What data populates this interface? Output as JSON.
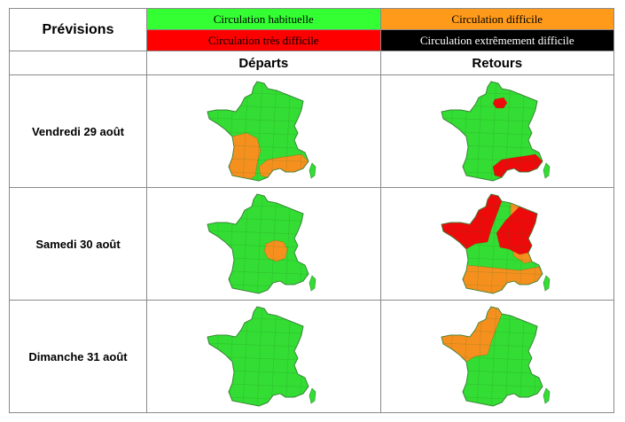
{
  "title": "Prévisions",
  "legend": {
    "habituelle": "Circulation habituelle",
    "difficile": "Circulation difficile",
    "tres_difficile": "Circulation très difficile",
    "extreme": "Circulation extrêmement difficile"
  },
  "colors": {
    "habituelle": "#33dd33",
    "difficile": "#f5901e",
    "tres_difficile": "#ee0a0a",
    "extreme": "#000000"
  },
  "columns": {
    "departs": "Départs",
    "retours": "Retours"
  },
  "rows": [
    {
      "label": "Vendredi 29 août",
      "departs": "friday_departs",
      "retours": "friday_retours"
    },
    {
      "label": "Samedi 30 août",
      "departs": "saturday_departs",
      "retours": "saturday_retours"
    },
    {
      "label": "Dimanche 31 août",
      "departs": "sunday_departs",
      "retours": "sunday_retours"
    }
  ]
}
